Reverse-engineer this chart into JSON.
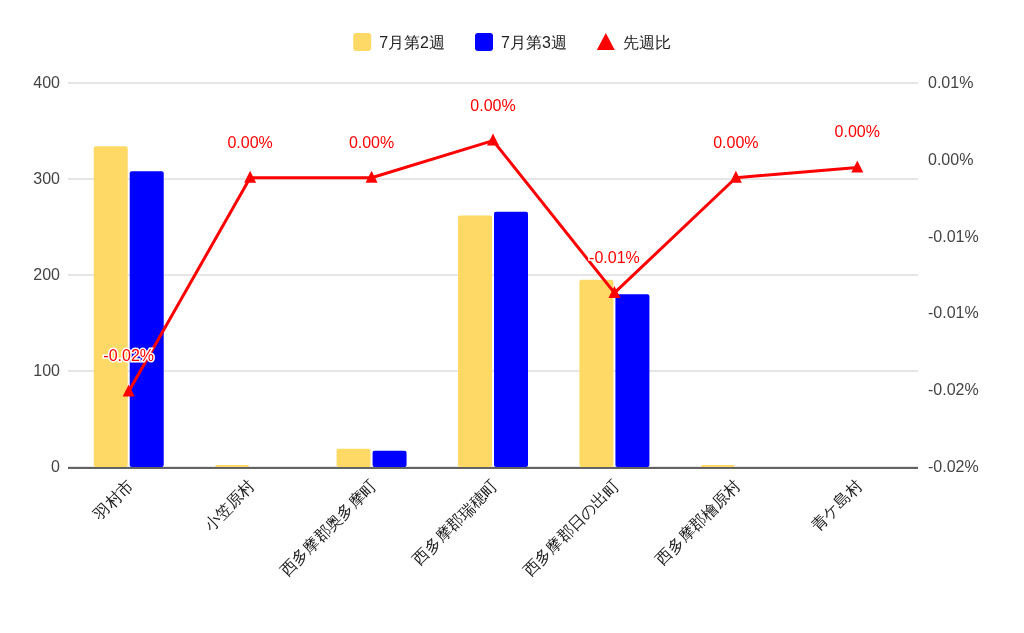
{
  "chart_data": {
    "type": "bar",
    "categories": [
      "羽村市",
      "小笠原村",
      "西多摩郡奥多摩町",
      "西多摩郡瑞穂町",
      "西多摩郡日の出町",
      "西多摩郡檜原村",
      "青ケ島村"
    ],
    "series": [
      {
        "name": "7月第2週",
        "color": "#ffd966",
        "values": [
          334,
          2,
          19,
          262,
          195,
          2,
          0
        ]
      },
      {
        "name": "7月第3週",
        "color": "#0000ff",
        "values": [
          308,
          0,
          17,
          266,
          180,
          0,
          0
        ]
      },
      {
        "name": "先週比",
        "type": "line",
        "axis": "y2",
        "color": "#ff0000",
        "marker": "triangle",
        "values": [
          -0.0171,
          -0.0004,
          -0.0004,
          0.0025,
          -0.0094,
          -0.0004,
          0.0004
        ],
        "value_labels": [
          "-0.02%",
          "0.00%",
          "0.00%",
          "0.00%",
          "-0.01%",
          "0.00%",
          "0.00%"
        ]
      }
    ],
    "ylim": [
      0,
      400
    ],
    "yticks": [
      0,
      100,
      200,
      300,
      400
    ],
    "y2lim": [
      -0.023,
      0.007
    ],
    "y2ticks": [
      {
        "value": 0.007,
        "label": "0.01%"
      },
      {
        "value": 0.001,
        "label": "0.00%"
      },
      {
        "value": -0.005,
        "label": "-0.01%"
      },
      {
        "value": -0.011,
        "label": "-0.01%"
      },
      {
        "value": -0.017,
        "label": "-0.02%"
      },
      {
        "value": -0.023,
        "label": "-0.02%"
      }
    ],
    "grid": "y",
    "legend": "top"
  }
}
